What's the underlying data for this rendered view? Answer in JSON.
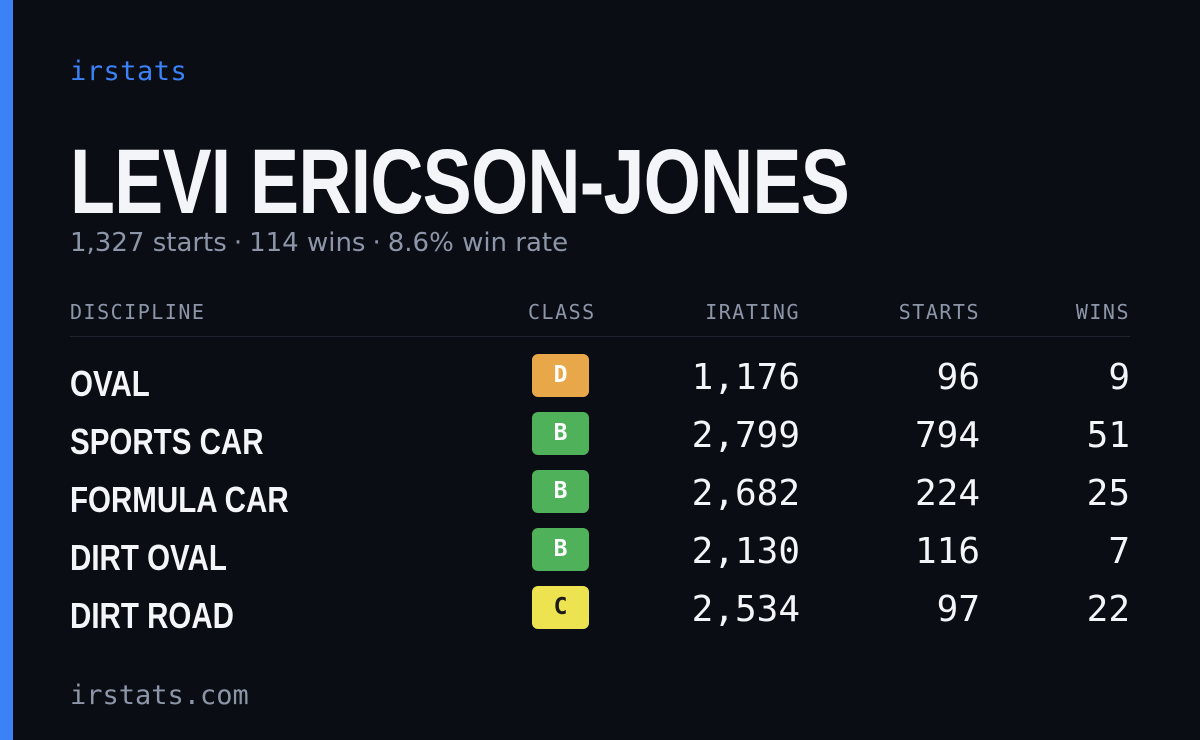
{
  "brand": "irstats",
  "player": {
    "name": "LEVI ERICSON-JONES",
    "starts_text": "1,327 starts",
    "wins_text": "114 wins",
    "win_rate_text": "8.6% win rate",
    "separator": "·"
  },
  "table": {
    "headers": {
      "discipline": "DISCIPLINE",
      "class": "CLASS",
      "irating": "IRATING",
      "starts": "STARTS",
      "wins": "WINS"
    },
    "rows": [
      {
        "discipline": "OVAL",
        "class": "D",
        "class_color": "#e8a84a",
        "class_text_color": "#ffffff",
        "irating": "1,176",
        "starts": "96",
        "wins": "9"
      },
      {
        "discipline": "SPORTS CAR",
        "class": "B",
        "class_color": "#4fb15a",
        "class_text_color": "#ffffff",
        "irating": "2,799",
        "starts": "794",
        "wins": "51"
      },
      {
        "discipline": "FORMULA CAR",
        "class": "B",
        "class_color": "#4fb15a",
        "class_text_color": "#ffffff",
        "irating": "2,682",
        "starts": "224",
        "wins": "25"
      },
      {
        "discipline": "DIRT OVAL",
        "class": "B",
        "class_color": "#4fb15a",
        "class_text_color": "#ffffff",
        "irating": "2,130",
        "starts": "116",
        "wins": "7"
      },
      {
        "discipline": "DIRT ROAD",
        "class": "C",
        "class_color": "#ede24f",
        "class_text_color": "#1a1a1a",
        "irating": "2,534",
        "starts": "97",
        "wins": "22"
      }
    ]
  },
  "footer": "irstats.com",
  "colors": {
    "background": "#0a0d14",
    "accent": "#3b82f6",
    "text_primary": "#f4f5f8",
    "text_muted": "#8d96a8"
  }
}
